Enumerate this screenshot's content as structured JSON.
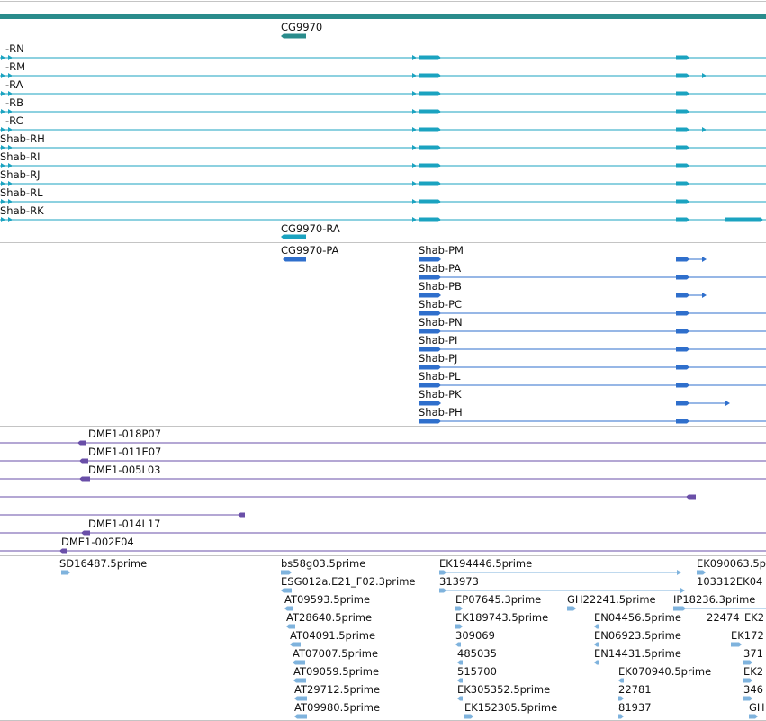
{
  "colors": {
    "ruler": "#2a8c8c",
    "teal": "#1ba3c0",
    "blue": "#2f6fcc",
    "purple": "#6a4fa8",
    "lightblue": "#7fb3dd",
    "separator": "#c4c4c4"
  },
  "gene_track": {
    "gene_label": "CG9970"
  },
  "rna_track": {
    "transcripts": [
      {
        "label": "-RN",
        "extra_3prime_arrow": false,
        "long_utr": false
      },
      {
        "label": "-RM",
        "extra_3prime_arrow": true,
        "long_utr": false
      },
      {
        "label": "-RA",
        "extra_3prime_arrow": false,
        "long_utr": false
      },
      {
        "label": "-RB",
        "extra_3prime_arrow": false,
        "long_utr": false
      },
      {
        "label": "-RC",
        "extra_3prime_arrow": true,
        "long_utr": false
      },
      {
        "label": "Shab-RH",
        "extra_3prime_arrow": false,
        "long_utr": false
      },
      {
        "label": "Shab-RI",
        "extra_3prime_arrow": false,
        "long_utr": false
      },
      {
        "label": "Shab-RJ",
        "extra_3prime_arrow": false,
        "long_utr": false
      },
      {
        "label": "Shab-RL",
        "extra_3prime_arrow": false,
        "long_utr": false
      },
      {
        "label": "Shab-RK",
        "extra_3prime_arrow": false,
        "long_utr": true
      }
    ],
    "cg_rna_label": "CG9970-RA"
  },
  "protein_track": {
    "cg_protein_label": "CG9970-PA",
    "proteins": [
      {
        "label": "Shab-PM",
        "tail": "arrow_short"
      },
      {
        "label": "Shab-PA",
        "tail": "line"
      },
      {
        "label": "Shab-PB",
        "tail": "arrow_short"
      },
      {
        "label": "Shab-PC",
        "tail": "line"
      },
      {
        "label": "Shab-PN",
        "tail": "line"
      },
      {
        "label": "Shab-PI",
        "tail": "line"
      },
      {
        "label": "Shab-PJ",
        "tail": "line"
      },
      {
        "label": "Shab-PL",
        "tail": "line"
      },
      {
        "label": "Shab-PK",
        "tail": "arrow_long"
      },
      {
        "label": "Shab-PH",
        "tail": "line"
      }
    ]
  },
  "clone_track": {
    "clones": [
      {
        "label": "DME1-018P07"
      },
      {
        "label": "DME1-011E07"
      },
      {
        "label": "DME1-005L03"
      },
      {
        "label": ""
      },
      {
        "label": ""
      },
      {
        "label": "DME1-014L17"
      },
      {
        "label": "DME1-002F04"
      }
    ]
  },
  "est_track": {
    "labels": [
      "SD16487.5prime",
      "bs58g03.5prime",
      "ESG012a.E21_F02.3prime",
      "AT09593.5prime",
      "AT28640.5prime",
      "AT04091.5prime",
      "AT07007.5prime",
      "AT09059.5prime",
      "AT29712.5prime",
      "AT09980.5prime",
      "EK194446.5prime",
      "313973",
      "EP07645.3prime",
      "EK189743.5prime",
      "309069",
      "485035",
      "515700",
      "EK305352.5prime",
      "EK152305.5prime",
      "GH22241.5prime",
      "EN04456.5prime",
      "EN06923.5prime",
      "EN14431.5prime",
      "EK070940.5prime",
      "22781",
      "81937",
      "EK090063.5p",
      "103312EK04",
      "IP18236.3prime",
      "22474",
      "EK2",
      "EK172",
      "371",
      "EK2",
      "346",
      "GH"
    ]
  }
}
